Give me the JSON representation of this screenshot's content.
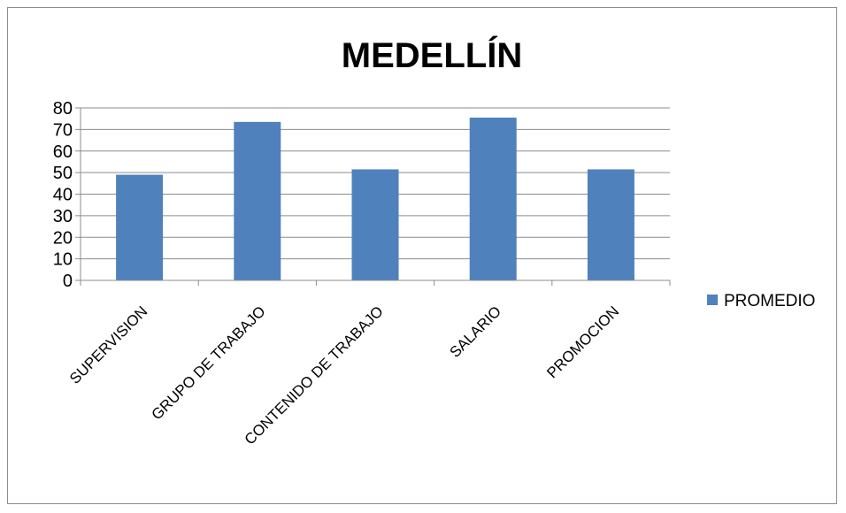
{
  "chart_data": {
    "type": "bar",
    "title": "MEDELLÍN",
    "categories": [
      "SUPERVISION",
      "GRUPO DE TRABAJO",
      "CONTENIDO DE TRABAJO",
      "SALARIO",
      "PROMOCION"
    ],
    "series": [
      {
        "name": "PROMEDIO",
        "values": [
          49,
          73.5,
          51.5,
          75.5,
          51.5
        ]
      }
    ],
    "xlabel": "",
    "ylabel": "",
    "ylim": [
      0,
      80
    ],
    "yticks": [
      0,
      10,
      20,
      30,
      40,
      50,
      60,
      70,
      80
    ],
    "grid": true,
    "legend_position": "right",
    "colors": {
      "bar": "#4f81bd",
      "grid": "#8c8c8c",
      "axis": "#8c8c8c"
    }
  }
}
